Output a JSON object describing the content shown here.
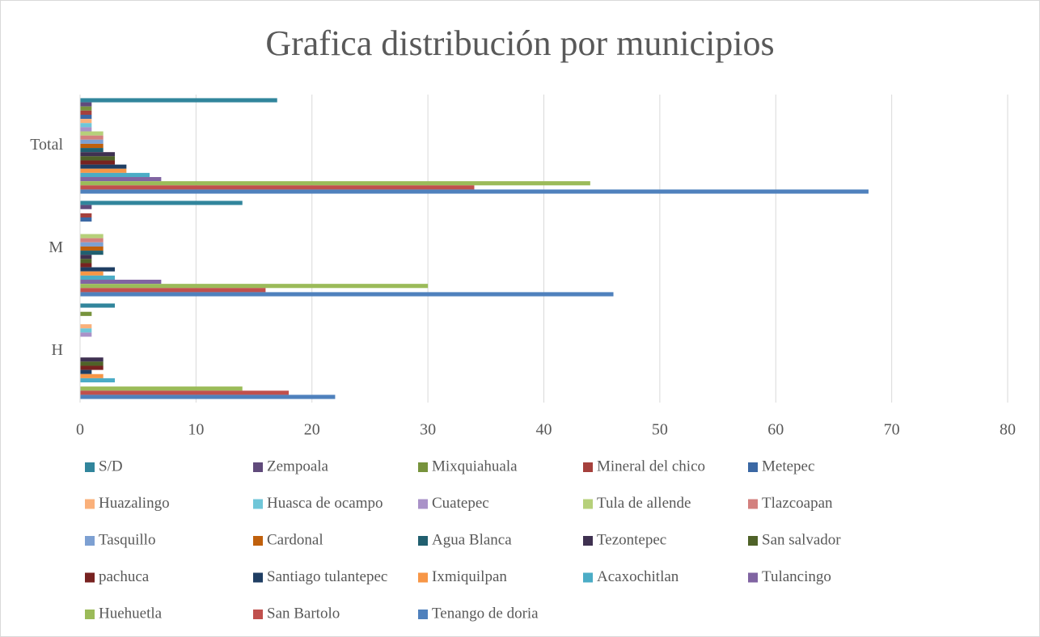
{
  "chart_data": {
    "type": "bar",
    "orientation": "horizontal",
    "title": "Grafica distribución por municipios",
    "categories": [
      "H",
      "M",
      "Total"
    ],
    "xlim": [
      0,
      80
    ],
    "xticks": [
      0,
      10,
      20,
      30,
      40,
      50,
      60,
      70,
      80
    ],
    "grid": true,
    "legend": "bottom",
    "series": [
      {
        "name": "S/D",
        "color": "#31859c",
        "values": [
          3,
          14,
          17
        ]
      },
      {
        "name": "Zempoala",
        "color": "#604a7b",
        "values": [
          0,
          1,
          1
        ]
      },
      {
        "name": "Mixquiahuala",
        "color": "#77933c",
        "values": [
          1,
          0,
          1
        ]
      },
      {
        "name": "Mineral del chico",
        "color": "#a5403c",
        "values": [
          0,
          1,
          1
        ]
      },
      {
        "name": "Metepec",
        "color": "#3b68a4",
        "values": [
          0,
          1,
          1
        ]
      },
      {
        "name": "Huazalingo",
        "color": "#fab07a",
        "values": [
          1,
          0,
          1
        ]
      },
      {
        "name": "Huasca de ocampo",
        "color": "#6fc6d8",
        "values": [
          1,
          0,
          1
        ]
      },
      {
        "name": "Cuatepec",
        "color": "#a991c8",
        "values": [
          1,
          0,
          1
        ]
      },
      {
        "name": "Tula de allende",
        "color": "#b6d07a",
        "values": [
          0,
          2,
          2
        ]
      },
      {
        "name": "Tlazcoapan",
        "color": "#d3807e",
        "values": [
          0,
          2,
          2
        ]
      },
      {
        "name": "Tasquillo",
        "color": "#7da0d2",
        "values": [
          0,
          2,
          2
        ]
      },
      {
        "name": "Cardonal",
        "color": "#c0600c",
        "values": [
          0,
          2,
          2
        ]
      },
      {
        "name": "Agua Blanca",
        "color": "#215f6f",
        "values": [
          0,
          2,
          2
        ]
      },
      {
        "name": "Tezontepec",
        "color": "#3f3151",
        "values": [
          2,
          1,
          3
        ]
      },
      {
        "name": "San salvador",
        "color": "#4f6228",
        "values": [
          2,
          1,
          3
        ]
      },
      {
        "name": "pachuca",
        "color": "#772220",
        "values": [
          2,
          1,
          3
        ]
      },
      {
        "name": "Santiago tulantepec",
        "color": "#1f3e63",
        "values": [
          1,
          3,
          4
        ]
      },
      {
        "name": "Ixmiquilpan",
        "color": "#f79646",
        "values": [
          2,
          2,
          4
        ]
      },
      {
        "name": "Acaxochitlan",
        "color": "#4bacc6",
        "values": [
          3,
          3,
          6
        ]
      },
      {
        "name": "Tulancingo",
        "color": "#8064a2",
        "values": [
          0,
          7,
          7
        ]
      },
      {
        "name": "Huehuetla",
        "color": "#9bbb59",
        "values": [
          14,
          30,
          44
        ]
      },
      {
        "name": "San Bartolo",
        "color": "#c0504d",
        "values": [
          18,
          16,
          34
        ]
      },
      {
        "name": "Tenango de doria",
        "color": "#4f81bd",
        "values": [
          22,
          46,
          68
        ]
      }
    ]
  }
}
